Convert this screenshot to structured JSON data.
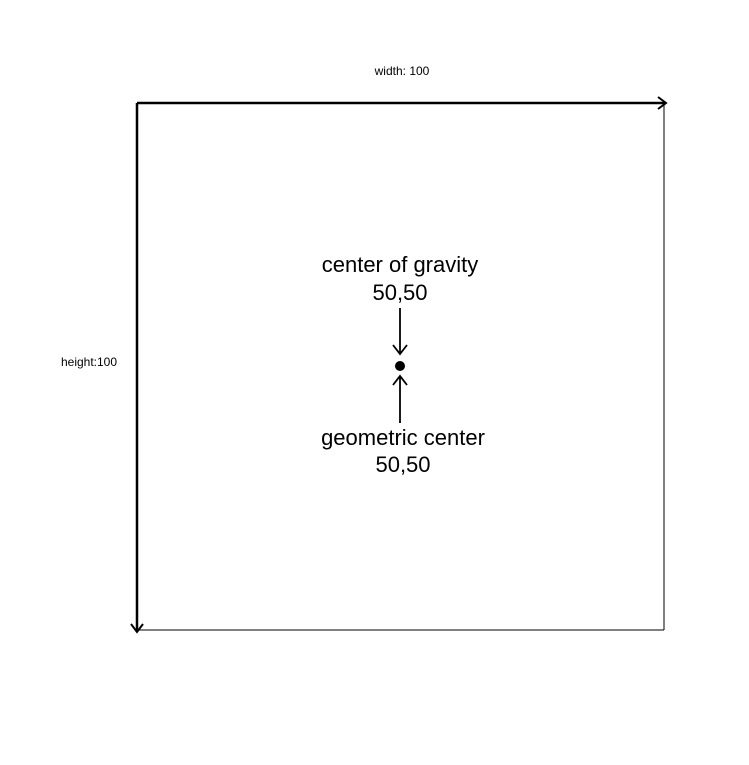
{
  "width_label": "width: 100",
  "height_label": "height:100",
  "center_of_gravity": {
    "title": "center of gravity",
    "coords": "50,50"
  },
  "geometric_center": {
    "title": "geometric center",
    "coords": "50,50"
  },
  "colors": {
    "stroke": "#000000",
    "background": "#ffffff"
  }
}
